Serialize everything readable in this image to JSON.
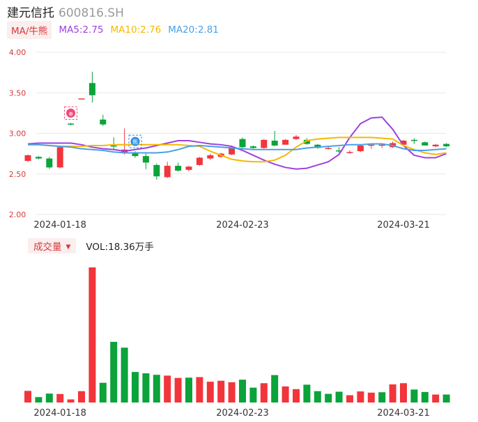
{
  "stock": {
    "name": "建元信托",
    "code": "600816.SH"
  },
  "ma_legend": {
    "toggle_label": "MA/牛熊",
    "items": [
      {
        "label": "MA5:2.75",
        "color": "#9d41e0"
      },
      {
        "label": "MA10:2.76",
        "color": "#f5b800"
      },
      {
        "label": "MA20:2.81",
        "color": "#4aa0e6"
      }
    ]
  },
  "volume_legend": {
    "toggle_label": "成交量",
    "caret": "▼",
    "value_label": "VOL:18.36万手"
  },
  "colors": {
    "up": "#f2353b",
    "down": "#0ba33a",
    "axis_text": "#d9383a",
    "date_text": "#333333",
    "grid": "#e8e8e8"
  },
  "markers": [
    {
      "index": 4,
      "kind": "buy-marker",
      "icon": "gift-icon",
      "color": "#f04a7a",
      "text": "⊕"
    },
    {
      "index": 10,
      "kind": "sell-marker",
      "icon": "shield-icon",
      "color": "#2f8de8",
      "text": "熊"
    }
  ],
  "chart_data": [
    {
      "type": "candlestick",
      "ylim": [
        2.0,
        4.0
      ],
      "yticks": [
        "4.00",
        "3.50",
        "3.00",
        "2.50",
        "2.00"
      ],
      "xtick_labels": [
        {
          "index": 3,
          "label": "2024-01-18"
        },
        {
          "index": 20,
          "label": "2024-02-23"
        },
        {
          "index": 35,
          "label": "2024-03-21"
        }
      ],
      "candles": [
        {
          "o": 2.66,
          "h": 2.74,
          "l": 2.65,
          "c": 2.73
        },
        {
          "o": 2.71,
          "h": 2.72,
          "l": 2.68,
          "c": 2.69
        },
        {
          "o": 2.69,
          "h": 2.71,
          "l": 2.56,
          "c": 2.58
        },
        {
          "o": 2.58,
          "h": 2.84,
          "l": 2.57,
          "c": 2.83
        },
        {
          "o": 3.12,
          "h": 3.13,
          "l": 3.1,
          "c": 3.11
        },
        {
          "o": 3.42,
          "h": 3.43,
          "l": 3.42,
          "c": 3.43
        },
        {
          "o": 3.62,
          "h": 3.76,
          "l": 3.38,
          "c": 3.47
        },
        {
          "o": 3.17,
          "h": 3.23,
          "l": 3.09,
          "c": 3.11
        },
        {
          "o": 2.85,
          "h": 2.95,
          "l": 2.8,
          "c": 2.84
        },
        {
          "o": 2.76,
          "h": 3.06,
          "l": 2.74,
          "c": 2.8
        },
        {
          "o": 2.76,
          "h": 2.78,
          "l": 2.7,
          "c": 2.72
        },
        {
          "o": 2.72,
          "h": 2.75,
          "l": 2.56,
          "c": 2.64
        },
        {
          "o": 2.61,
          "h": 2.63,
          "l": 2.43,
          "c": 2.47
        },
        {
          "o": 2.46,
          "h": 2.65,
          "l": 2.45,
          "c": 2.6
        },
        {
          "o": 2.6,
          "h": 2.64,
          "l": 2.53,
          "c": 2.54
        },
        {
          "o": 2.55,
          "h": 2.6,
          "l": 2.53,
          "c": 2.59
        },
        {
          "o": 2.61,
          "h": 2.71,
          "l": 2.6,
          "c": 2.7
        },
        {
          "o": 2.69,
          "h": 2.75,
          "l": 2.67,
          "c": 2.73
        },
        {
          "o": 2.71,
          "h": 2.76,
          "l": 2.7,
          "c": 2.75
        },
        {
          "o": 2.74,
          "h": 2.84,
          "l": 2.73,
          "c": 2.83
        },
        {
          "o": 2.93,
          "h": 2.95,
          "l": 2.82,
          "c": 2.83
        },
        {
          "o": 2.84,
          "h": 2.85,
          "l": 2.81,
          "c": 2.82
        },
        {
          "o": 2.82,
          "h": 2.93,
          "l": 2.81,
          "c": 2.92
        },
        {
          "o": 2.91,
          "h": 3.03,
          "l": 2.84,
          "c": 2.85
        },
        {
          "o": 2.86,
          "h": 2.93,
          "l": 2.86,
          "c": 2.92
        },
        {
          "o": 2.93,
          "h": 2.98,
          "l": 2.92,
          "c": 2.96
        },
        {
          "o": 2.92,
          "h": 2.94,
          "l": 2.86,
          "c": 2.87
        },
        {
          "o": 2.86,
          "h": 2.87,
          "l": 2.81,
          "c": 2.82
        },
        {
          "o": 2.81,
          "h": 2.84,
          "l": 2.8,
          "c": 2.82
        },
        {
          "o": 2.79,
          "h": 2.83,
          "l": 2.76,
          "c": 2.78
        },
        {
          "o": 2.77,
          "h": 2.79,
          "l": 2.75,
          "c": 2.77
        },
        {
          "o": 2.78,
          "h": 2.86,
          "l": 2.77,
          "c": 2.85
        },
        {
          "o": 2.85,
          "h": 2.87,
          "l": 2.81,
          "c": 2.86
        },
        {
          "o": 2.85,
          "h": 2.88,
          "l": 2.82,
          "c": 2.86
        },
        {
          "o": 2.83,
          "h": 2.9,
          "l": 2.82,
          "c": 2.88
        },
        {
          "o": 2.86,
          "h": 2.92,
          "l": 2.85,
          "c": 2.91
        },
        {
          "o": 2.92,
          "h": 2.94,
          "l": 2.87,
          "c": 2.91
        },
        {
          "o": 2.89,
          "h": 2.9,
          "l": 2.85,
          "c": 2.85
        },
        {
          "o": 2.84,
          "h": 2.87,
          "l": 2.83,
          "c": 2.86
        },
        {
          "o": 2.87,
          "h": 2.88,
          "l": 2.83,
          "c": 2.84
        }
      ],
      "series": [
        {
          "name": "MA5",
          "color": "#9d41e0",
          "values": [
            2.87,
            2.88,
            2.88,
            2.88,
            2.88,
            2.86,
            2.83,
            2.81,
            2.8,
            2.78,
            2.8,
            2.82,
            2.85,
            2.88,
            2.91,
            2.91,
            2.89,
            2.87,
            2.86,
            2.84,
            2.79,
            2.73,
            2.67,
            2.62,
            2.58,
            2.56,
            2.57,
            2.61,
            2.65,
            2.74,
            2.95,
            3.12,
            3.19,
            3.2,
            3.05,
            2.85,
            2.73,
            2.7,
            2.7,
            2.75
          ]
        },
        {
          "name": "MA10",
          "color": "#f5b800",
          "values": [
            2.86,
            2.86,
            2.85,
            2.84,
            2.84,
            2.84,
            2.85,
            2.85,
            2.86,
            2.86,
            2.86,
            2.86,
            2.86,
            2.86,
            2.86,
            2.85,
            2.84,
            2.78,
            2.73,
            2.68,
            2.66,
            2.65,
            2.65,
            2.67,
            2.73,
            2.83,
            2.91,
            2.93,
            2.94,
            2.95,
            2.95,
            2.95,
            2.95,
            2.94,
            2.93,
            2.85,
            2.8,
            2.76,
            2.74,
            2.76
          ]
        },
        {
          "name": "MA20",
          "color": "#4aa0e6",
          "values": [
            2.86,
            2.86,
            2.85,
            2.84,
            2.83,
            2.81,
            2.8,
            2.79,
            2.77,
            2.76,
            2.76,
            2.76,
            2.76,
            2.77,
            2.8,
            2.84,
            2.85,
            2.84,
            2.83,
            2.82,
            2.81,
            2.8,
            2.8,
            2.8,
            2.8,
            2.8,
            2.82,
            2.83,
            2.84,
            2.85,
            2.86,
            2.86,
            2.87,
            2.87,
            2.85,
            2.81,
            2.79,
            2.79,
            2.8,
            2.81
          ]
        }
      ]
    },
    {
      "type": "bar",
      "series": [
        {
          "name": "VOL",
          "values": [
            8.6,
            4.0,
            6.6,
            6.3,
            2.3,
            8.4,
            100,
            14.6,
            44.9,
            40.6,
            22.6,
            21.6,
            20.5,
            19.9,
            18.2,
            18.4,
            18.8,
            15.4,
            16.1,
            15.0,
            16.9,
            11.0,
            14.3,
            20.3,
            11.9,
            9.9,
            13.2,
            8.4,
            6.4,
            8.0,
            5.4,
            8.2,
            7.3,
            7.6,
            13.4,
            14.3,
            9.6,
            7.8,
            5.9,
            5.9
          ]
        }
      ],
      "directions": [
        "up",
        "down",
        "down",
        "up",
        "up",
        "up",
        "up",
        "down",
        "down",
        "down",
        "down",
        "down",
        "down",
        "up",
        "up",
        "down",
        "up",
        "up",
        "up",
        "up",
        "down",
        "down",
        "up",
        "down",
        "up",
        "up",
        "down",
        "down",
        "down",
        "down",
        "up",
        "up",
        "up",
        "down",
        "up",
        "up",
        "down",
        "down",
        "up",
        "down"
      ]
    }
  ]
}
